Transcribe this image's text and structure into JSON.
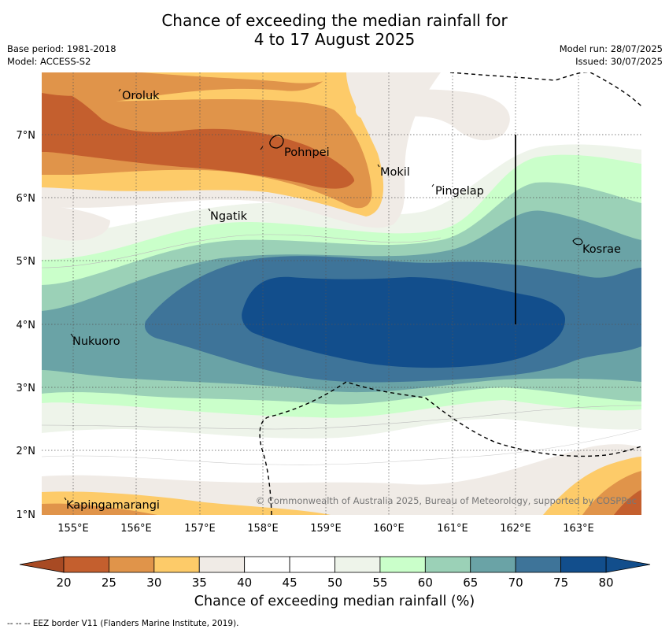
{
  "title": {
    "line1": "Chance of exceeding the median rainfall for",
    "line2": "4 to 17 August 2025"
  },
  "meta_left": {
    "base_period": "Base period: 1981-2018",
    "model": "Model: ACCESS-S2"
  },
  "meta_right": {
    "model_run": "Model run: 28/07/2025",
    "issued": "Issued: 30/07/2025"
  },
  "map": {
    "longitude_ticks": [
      "155°E",
      "156°E",
      "157°E",
      "158°E",
      "159°E",
      "160°E",
      "161°E",
      "162°E",
      "163°E"
    ],
    "latitude_ticks": [
      "7°N",
      "6°N",
      "5°N",
      "4°N",
      "3°N",
      "2°N",
      "1°N"
    ],
    "lon_range": [
      154.5,
      164.0
    ],
    "lat_range": [
      0.98,
      7.99
    ],
    "grid": "dotted",
    "islands": [
      {
        "name": "Oroluk"
      },
      {
        "name": "Pohnpei"
      },
      {
        "name": "Mokil"
      },
      {
        "name": "Pingelap"
      },
      {
        "name": "Ngatik"
      },
      {
        "name": "Kosrae"
      },
      {
        "name": "Nukuoro"
      },
      {
        "name": "Kapingamarangi"
      }
    ],
    "copyright": "© Commonwealth of Australia 2025, Bureau of Meteorology, supported by COSPPac",
    "eez_border_style": "dashed black"
  },
  "colorbar": {
    "ticks": [
      "20",
      "25",
      "30",
      "35",
      "40",
      "45",
      "50",
      "55",
      "60",
      "65",
      "70",
      "75",
      "80"
    ],
    "colors": [
      "#a84a23",
      "#c45f2e",
      "#e0944a",
      "#fdcb69",
      "#f0ebe6",
      "#ffffff",
      "#ffffff",
      "#eef4ea",
      "#caffca",
      "#9bd1b7",
      "#6aa3a6",
      "#3e7499",
      "#124e8c"
    ],
    "extend": "both",
    "label": "Chance of exceeding median rainfall (%)"
  },
  "footnote": "--  --  -- EEZ border V11 (Flanders Marine Institute, 2019)."
}
